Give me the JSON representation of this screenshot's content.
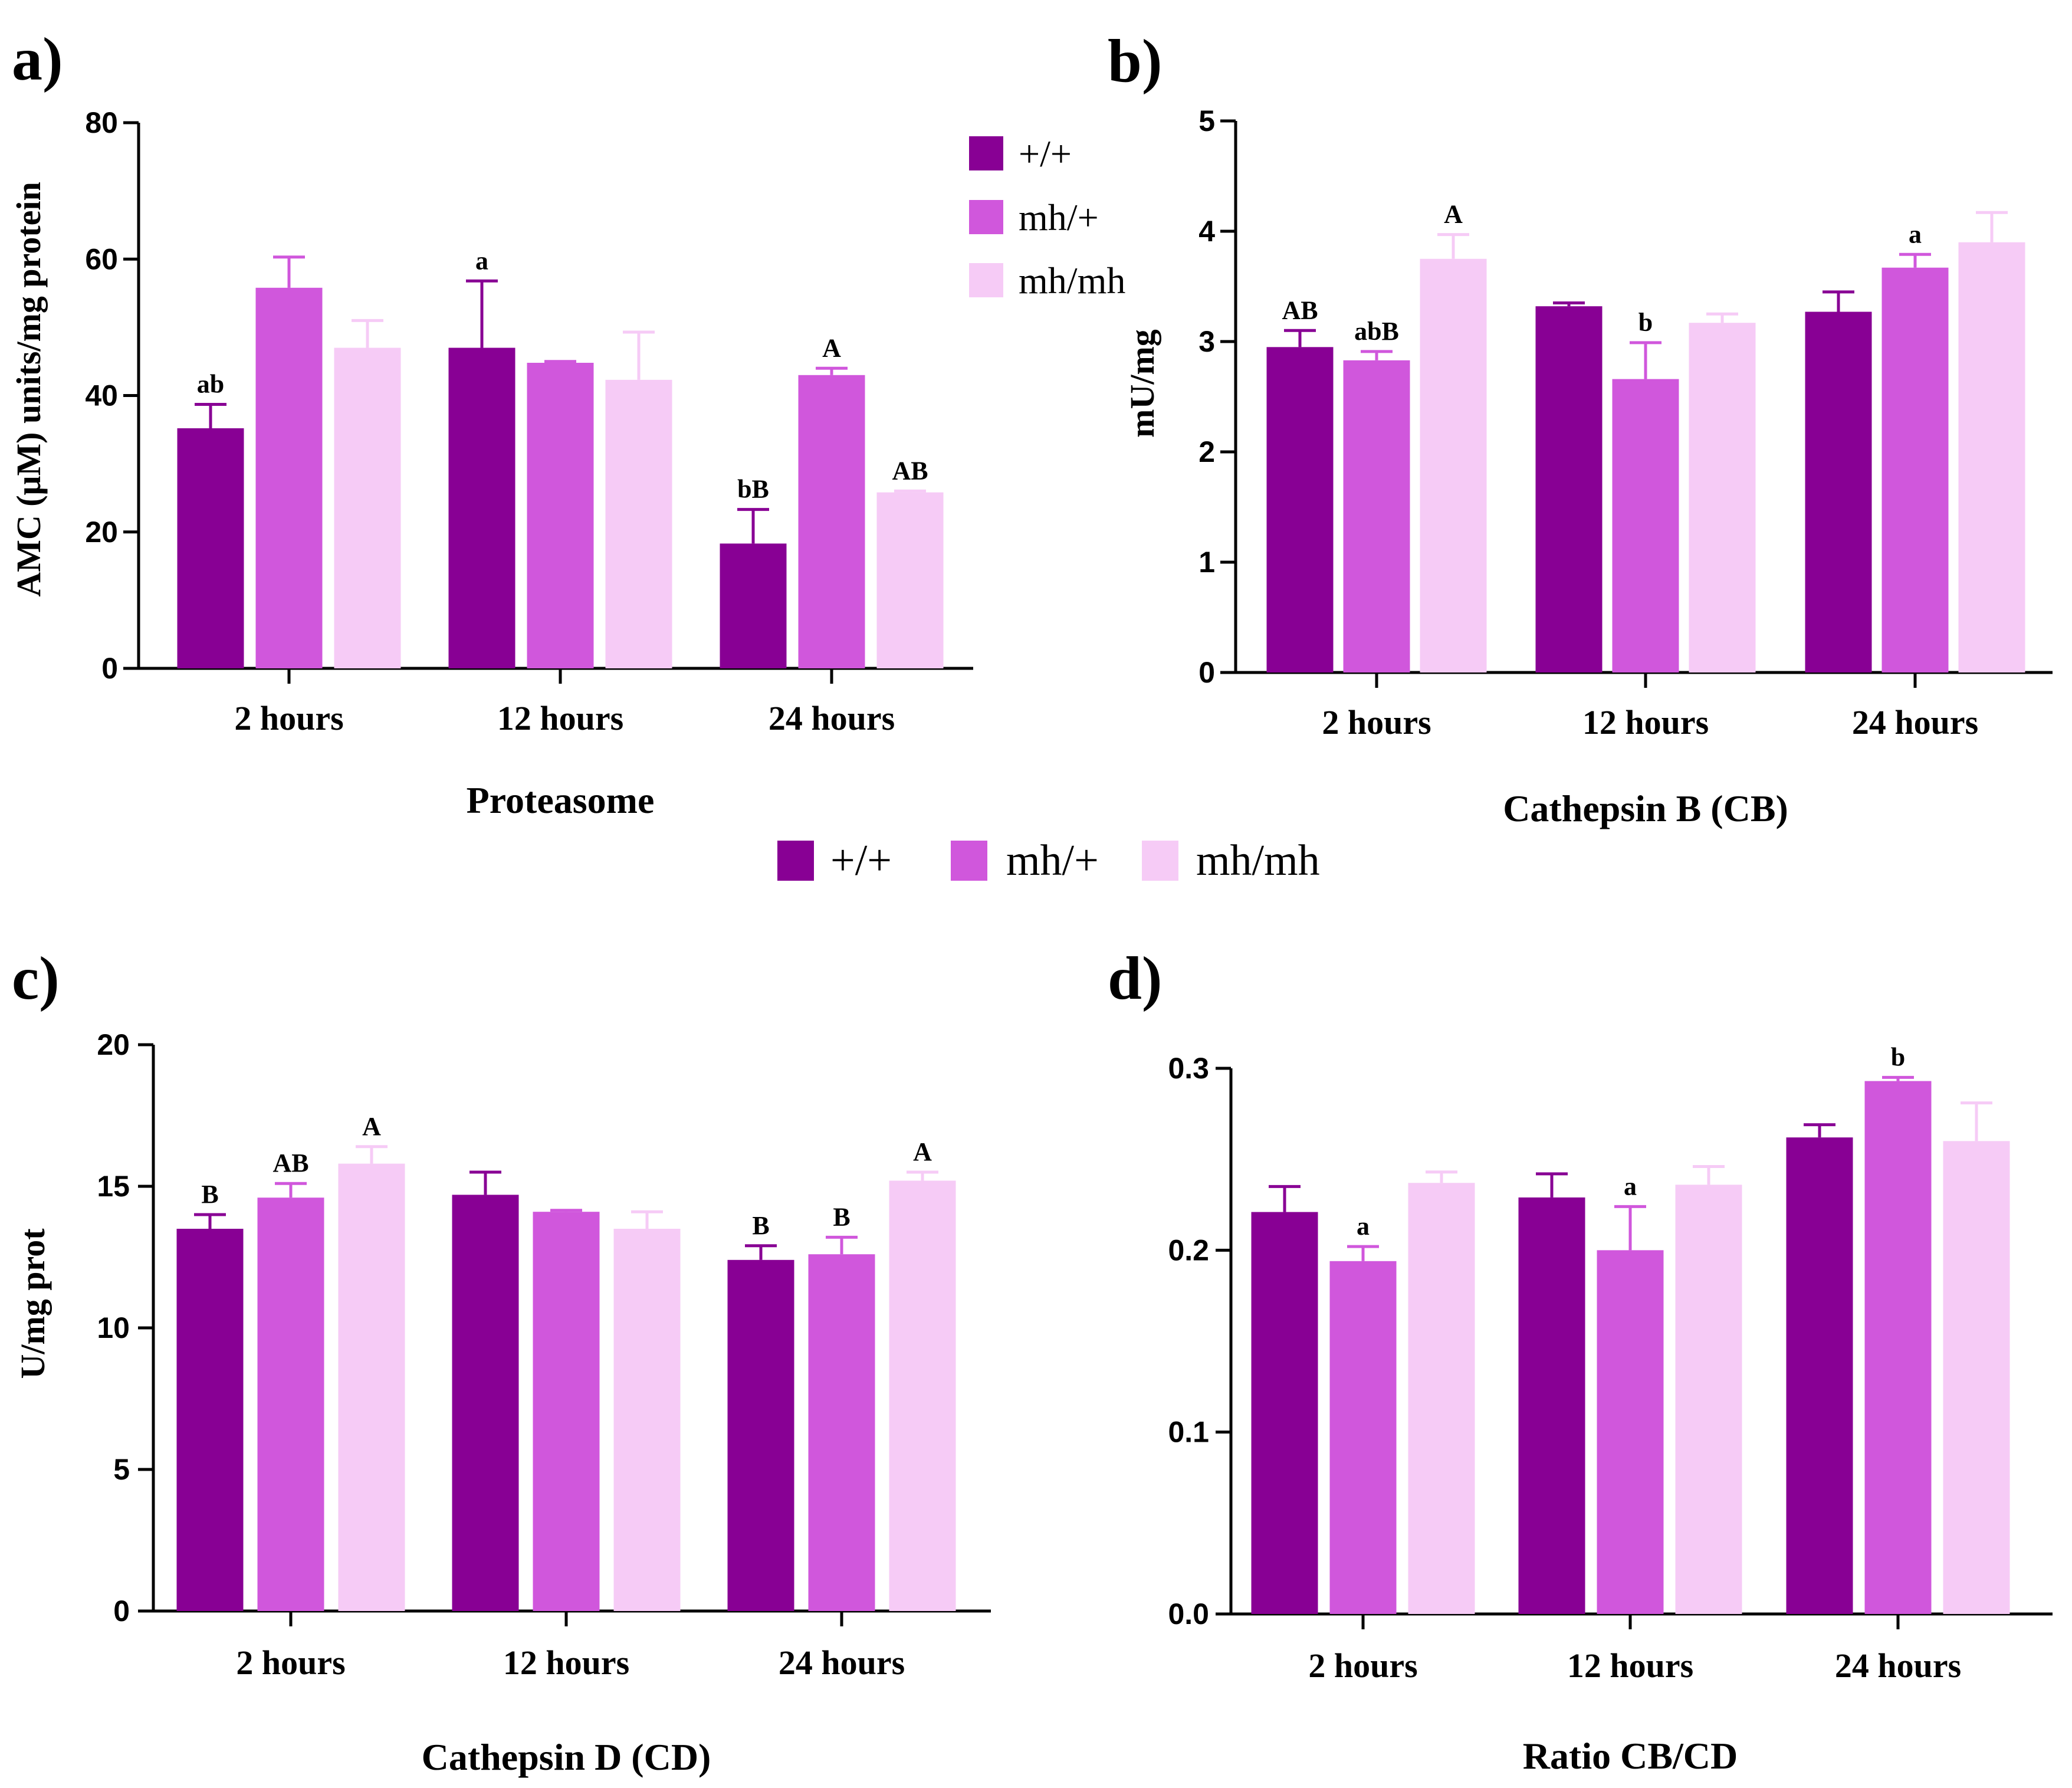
{
  "colors": {
    "wt": "#880094",
    "het": "#d057dc",
    "hom": "#f6cbf6"
  },
  "legend": {
    "items": [
      "+/+",
      "mh/+",
      "mh/mh"
    ]
  },
  "chart_data": [
    {
      "panel": "a)",
      "type": "bar",
      "title": "Proteasome",
      "xlabel": "Proteasome",
      "ylabel": "AMC (μM) units/mg protein",
      "ylim": [
        0,
        80
      ],
      "yticks": [
        "0",
        "20",
        "40",
        "60",
        "80"
      ],
      "categories": [
        "2 hours",
        "12 hours",
        "24 hours"
      ],
      "series": [
        {
          "name": "+/+",
          "values": [
            35.2,
            47.0,
            18.3
          ],
          "errors": [
            3.5,
            9.8,
            5.0
          ],
          "labels": [
            "ab",
            "a",
            "bB"
          ]
        },
        {
          "name": "mh/+",
          "values": [
            55.8,
            44.8,
            43.0
          ],
          "errors": [
            4.5,
            0.2,
            1.0
          ],
          "labels": [
            "",
            "",
            "A"
          ]
        },
        {
          "name": "mh/mh",
          "values": [
            47.0,
            42.3,
            25.8
          ],
          "errors": [
            4.0,
            7.0,
            0.2
          ],
          "labels": [
            "",
            "",
            "AB"
          ]
        }
      ],
      "legend_position": "top-right"
    },
    {
      "panel": "b)",
      "type": "bar",
      "title": "Cathepsin B (CB)",
      "xlabel": "Cathepsin B (CB)",
      "ylabel": "mU/mg",
      "ylim": [
        0,
        5
      ],
      "yticks": [
        "0",
        "1",
        "2",
        "3",
        "4",
        "5"
      ],
      "categories": [
        "2 hours",
        "12 hours",
        "24 hours"
      ],
      "series": [
        {
          "name": "+/+",
          "values": [
            2.95,
            3.32,
            3.27
          ],
          "errors": [
            0.15,
            0.03,
            0.18
          ],
          "labels": [
            "AB",
            "",
            ""
          ]
        },
        {
          "name": "mh/+",
          "values": [
            2.83,
            2.66,
            3.67
          ],
          "errors": [
            0.08,
            0.33,
            0.12
          ],
          "labels": [
            "abB",
            "b",
            "a"
          ]
        },
        {
          "name": "mh/mh",
          "values": [
            3.75,
            3.17,
            3.9
          ],
          "errors": [
            0.22,
            0.08,
            0.27
          ],
          "labels": [
            "A",
            "",
            ""
          ]
        }
      ]
    },
    {
      "panel": "c)",
      "type": "bar",
      "title": "Cathepsin D (CD)",
      "xlabel": "Cathepsin D (CD)",
      "ylabel": "U/mg prot",
      "ylim": [
        0,
        20
      ],
      "yticks": [
        "0",
        "5",
        "10",
        "15",
        "20"
      ],
      "categories": [
        "2 hours",
        "12 hours",
        "24 hours"
      ],
      "series": [
        {
          "name": "+/+",
          "values": [
            13.5,
            14.7,
            12.4
          ],
          "errors": [
            0.5,
            0.8,
            0.5
          ],
          "labels": [
            "B",
            "",
            "B"
          ]
        },
        {
          "name": "mh/+",
          "values": [
            14.6,
            14.1,
            12.6
          ],
          "errors": [
            0.5,
            0.05,
            0.6
          ],
          "labels": [
            "AB",
            "",
            "B"
          ]
        },
        {
          "name": "mh/mh",
          "values": [
            15.8,
            13.5,
            15.2
          ],
          "errors": [
            0.6,
            0.6,
            0.3
          ],
          "labels": [
            "A",
            "",
            "A"
          ]
        }
      ]
    },
    {
      "panel": "d)",
      "type": "bar",
      "title": "Ratio CB/CD",
      "xlabel": "Ratio CB/CD",
      "ylabel": "",
      "ylim": [
        0,
        0.3
      ],
      "yticks": [
        "0.0",
        "0.1",
        "0.2",
        "0.3"
      ],
      "categories": [
        "2 hours",
        "12 hours",
        "24 hours"
      ],
      "series": [
        {
          "name": "+/+",
          "values": [
            0.221,
            0.229,
            0.262
          ],
          "errors": [
            0.014,
            0.013,
            0.007
          ],
          "labels": [
            "",
            "",
            ""
          ]
        },
        {
          "name": "mh/+",
          "values": [
            0.194,
            0.2,
            0.293
          ],
          "errors": [
            0.008,
            0.024,
            0.002
          ],
          "labels": [
            "a",
            "a",
            "b"
          ]
        },
        {
          "name": "mh/mh",
          "values": [
            0.237,
            0.236,
            0.26
          ],
          "errors": [
            0.006,
            0.01,
            0.021
          ],
          "labels": [
            "",
            "",
            ""
          ]
        }
      ]
    }
  ]
}
